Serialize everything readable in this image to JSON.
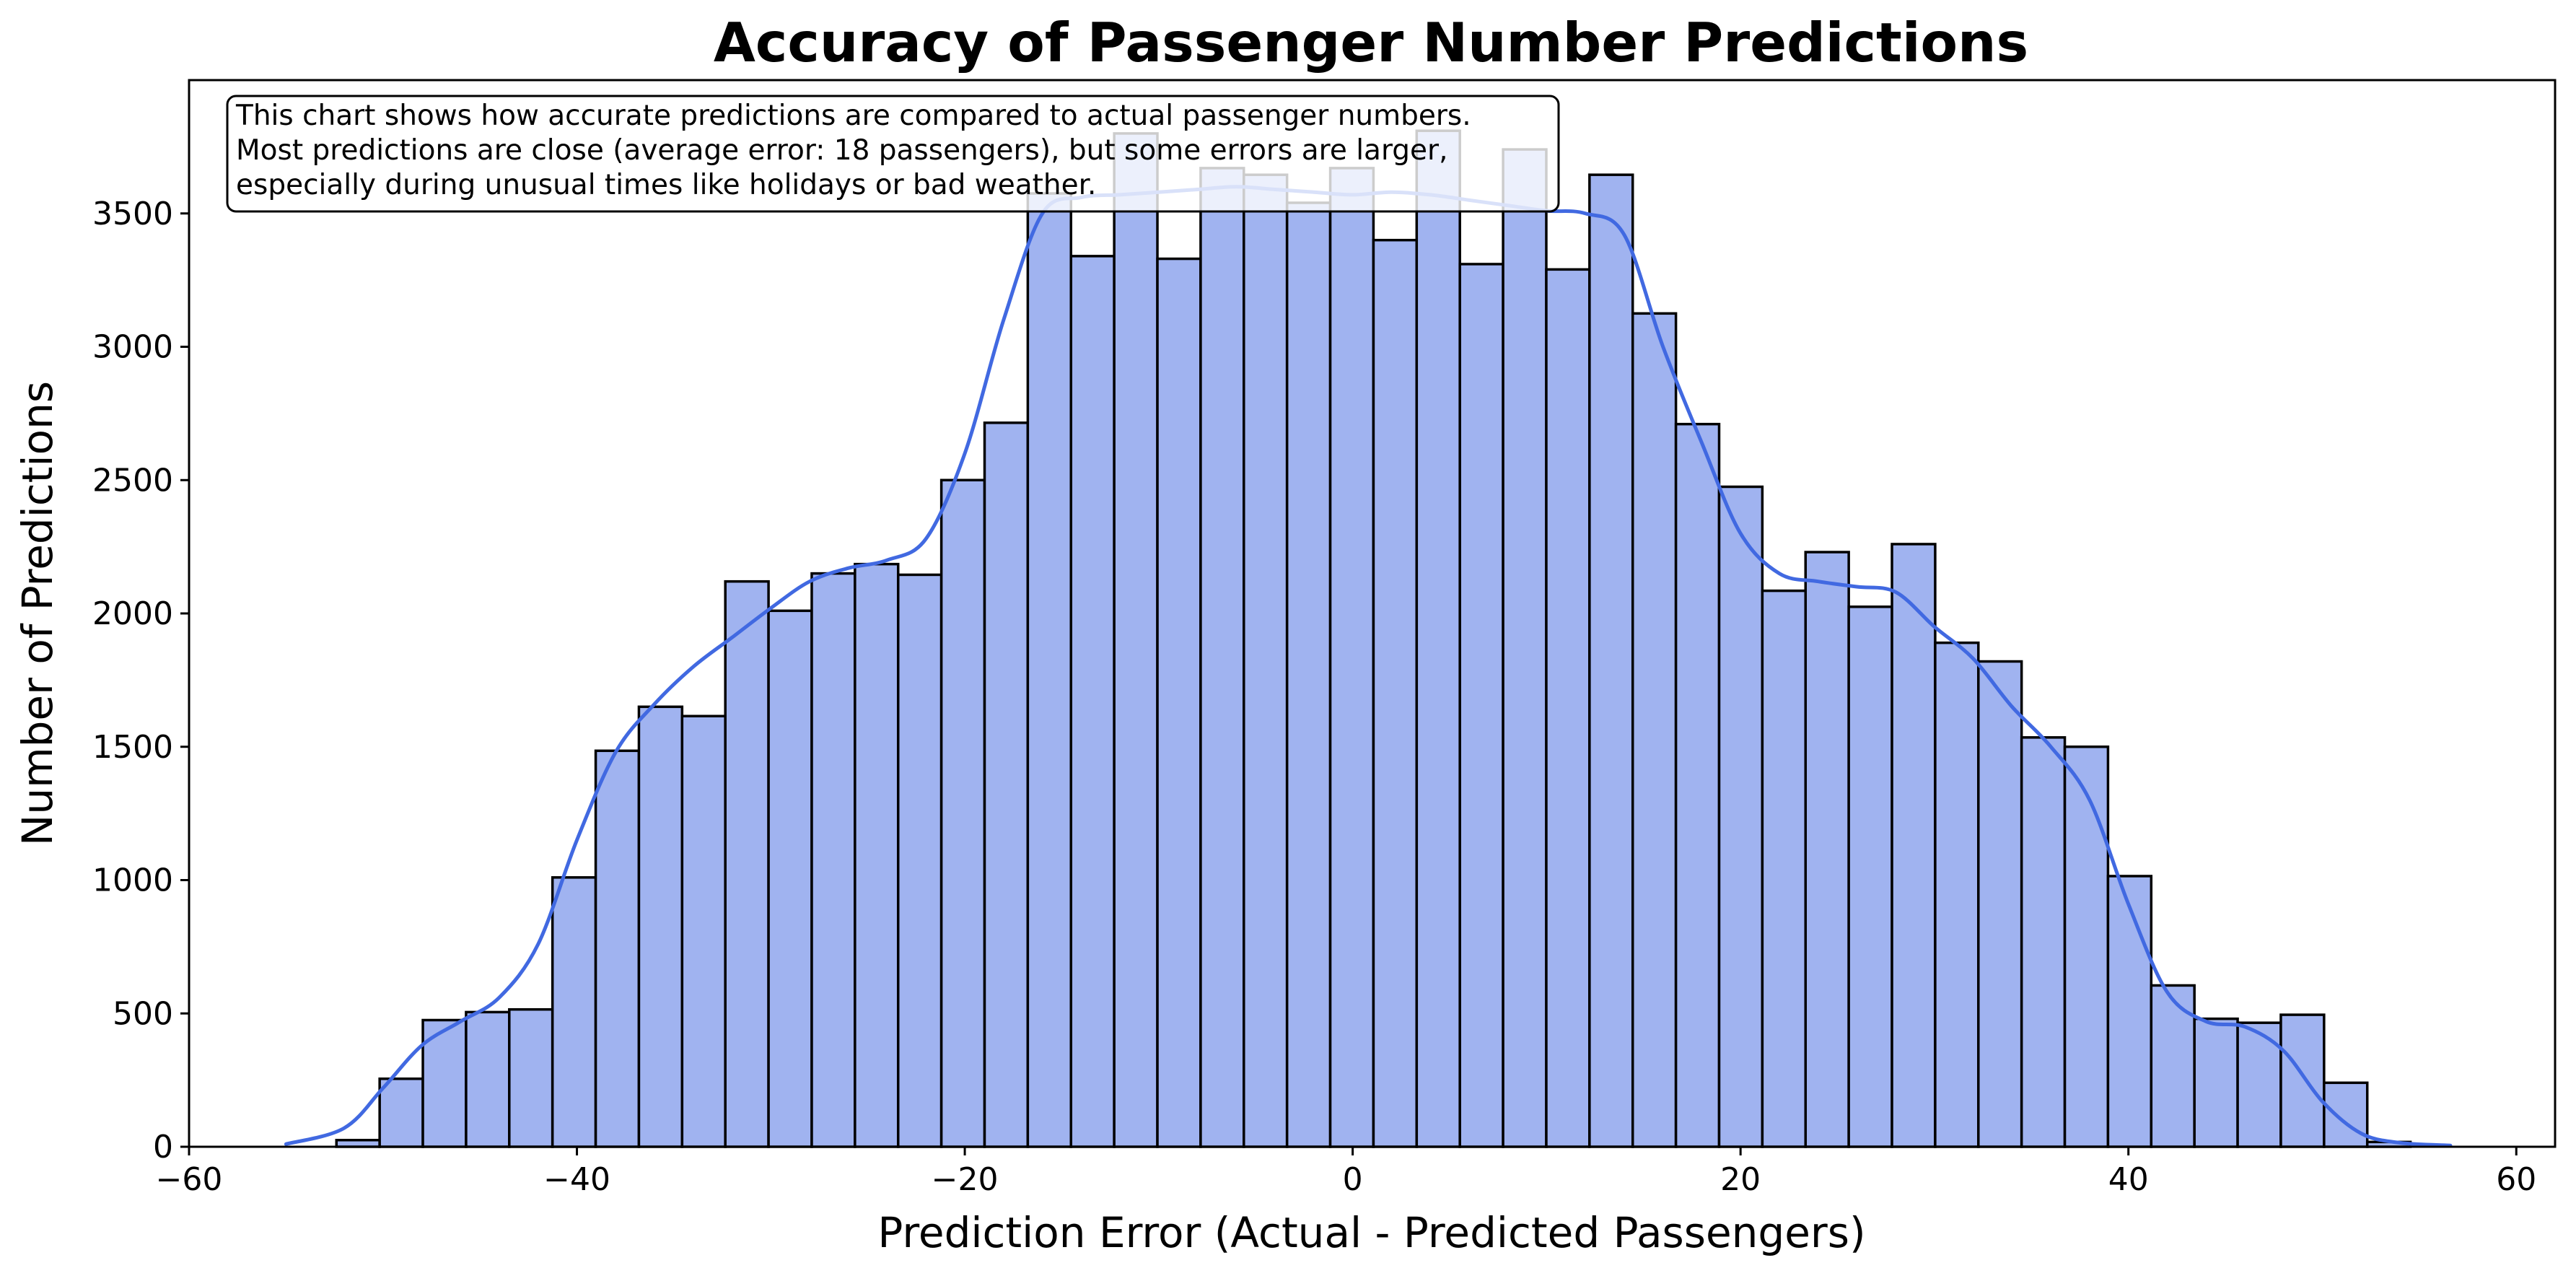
{
  "chart_data": {
    "type": "bar",
    "title": "Accuracy of Passenger Number Predictions",
    "xlabel": "Prediction Error (Actual - Predicted Passengers)",
    "ylabel": "Number of Predictions",
    "xlim": [
      -60,
      62
    ],
    "ylim": [
      0,
      4000
    ],
    "xticks": [
      -60,
      -40,
      -20,
      0,
      20,
      40,
      60
    ],
    "xtick_labels": [
      "−60",
      "−40",
      "−20",
      "0",
      "20",
      "40",
      "60"
    ],
    "yticks": [
      0,
      500,
      1000,
      1500,
      2000,
      2500,
      3000,
      3500
    ],
    "yticks_labels": [
      "0",
      "500",
      "1000",
      "1500",
      "2000",
      "2500",
      "3000",
      "3500"
    ],
    "grid": false,
    "bin_start": -52.4,
    "bin_width": 2.228,
    "values": [
      25,
      255,
      475,
      505,
      515,
      1010,
      1485,
      1650,
      1615,
      2120,
      2010,
      2150,
      2185,
      2145,
      2500,
      2715,
      3575,
      3340,
      3800,
      3330,
      3670,
      3645,
      3540,
      3670,
      3400,
      3810,
      3310,
      3740,
      3290,
      3645,
      3125,
      2710,
      2475,
      2085,
      2230,
      2025,
      2260,
      1890,
      1820,
      1535,
      1500,
      1015,
      605,
      480,
      465,
      495,
      240,
      18
    ],
    "kde_curve": {
      "x": [
        -55,
        -52,
        -50,
        -48,
        -46,
        -44,
        -42,
        -40,
        -38,
        -36,
        -34,
        -32,
        -30,
        -28,
        -26,
        -24,
        -22,
        -20,
        -18,
        -16,
        -14,
        -12,
        -10,
        -8,
        -6,
        -4,
        -2,
        0,
        2,
        4,
        6,
        8,
        10,
        12,
        14,
        16,
        18,
        20,
        22,
        24,
        26,
        28,
        30,
        32,
        34,
        36,
        38,
        40,
        42,
        44,
        46,
        48,
        50,
        52,
        54,
        56.6
      ],
      "y": [
        10,
        70,
        220,
        380,
        470,
        560,
        760,
        1150,
        1480,
        1660,
        1800,
        1910,
        2020,
        2120,
        2170,
        2200,
        2280,
        2600,
        3100,
        3500,
        3560,
        3570,
        3580,
        3590,
        3600,
        3590,
        3580,
        3570,
        3580,
        3570,
        3550,
        3530,
        3510,
        3500,
        3420,
        3000,
        2640,
        2300,
        2150,
        2120,
        2100,
        2080,
        1950,
        1830,
        1650,
        1500,
        1300,
        910,
        580,
        470,
        450,
        360,
        170,
        50,
        15,
        5
      ]
    },
    "colors": {
      "bar_fill": "#a0b3f0",
      "bar_edge": "#000000",
      "kde_line": "#4169e1"
    },
    "annotation": {
      "lines": [
        "This chart shows how accurate predictions are compared to actual passenger numbers.",
        "Most predictions are close (average error: 18 passengers), but some errors are larger,",
        "especially during unusual times like holidays or bad weather."
      ]
    }
  }
}
